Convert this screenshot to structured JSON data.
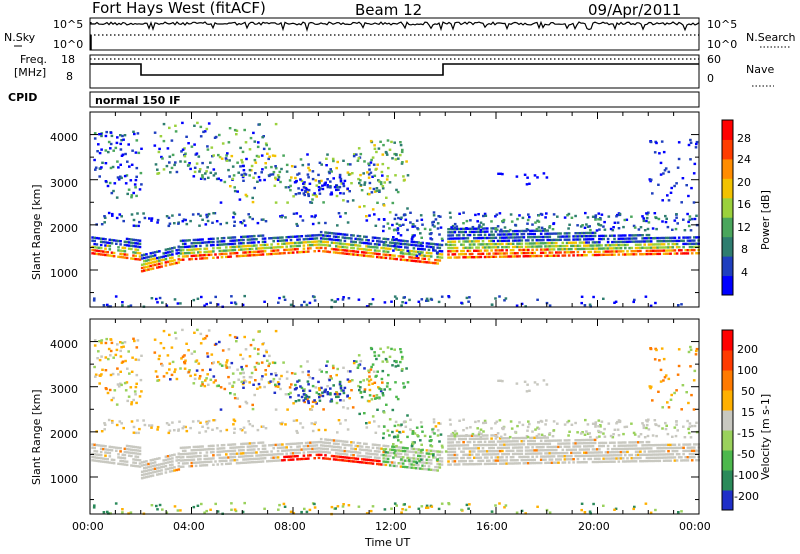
{
  "header": {
    "station": "Fort Hays West (fitACF)",
    "beam": "Beam 12",
    "date": "09/Apr/2011"
  },
  "noise_panel": {
    "left_label": "N.Sky",
    "left_ticks": [
      "10^5",
      "10^0"
    ],
    "right_label": "N.Search",
    "right_ticks": [
      "10^5",
      "10^0"
    ]
  },
  "freq_panel": {
    "left_label_1": "Freq.",
    "left_label_2": "[MHz]",
    "left_ticks": [
      "18",
      "8"
    ],
    "right_label": "Nave",
    "right_ticks": [
      "60",
      "0"
    ]
  },
  "cpid": {
    "label": "CPID",
    "mode": "normal 150 IF"
  },
  "chart_data": [
    {
      "type": "heatmap",
      "name": "power",
      "ylabel": "Slant Range [km]",
      "ylim": [
        180,
        4500
      ],
      "y_ticks": [
        "4000",
        "3000",
        "2000",
        "1000"
      ],
      "xlabel": "Time UT",
      "x_ticks": [
        "00:00",
        "04:00",
        "08:00",
        "12:00",
        "16:00",
        "20:00",
        "00:00"
      ],
      "colorbar": {
        "label": "Power [dB]",
        "ticks": [
          "28",
          "24",
          "20",
          "16",
          "12",
          "8",
          "4"
        ],
        "colors": [
          "#0000ff",
          "#1f3fbf",
          "#2e7d6f",
          "#4aa65c",
          "#9bd13c",
          "#f2c200",
          "#ff8c00",
          "#ff3d00",
          "#ff0000"
        ]
      },
      "bands": [
        {
          "t0": 0.0,
          "t1": 2.0,
          "r_low": [
            1400,
            1250
          ],
          "r_high": [
            1750,
            1700
          ]
        },
        {
          "t0": 2.0,
          "t1": 3.5,
          "r_low": [
            1000,
            1200
          ],
          "r_high": [
            1400,
            1550
          ]
        },
        {
          "t0": 3.5,
          "t1": 9.0,
          "r_low": [
            1250,
            1450
          ],
          "r_high": [
            1700,
            1850
          ]
        },
        {
          "t0": 9.0,
          "t1": 14.0,
          "r_low": [
            1450,
            1150
          ],
          "r_high": [
            1900,
            1600
          ]
        },
        {
          "t0": 14.0,
          "t1": 24.0,
          "r_low": [
            1300,
            1400
          ],
          "r_high": [
            2000,
            1750
          ]
        }
      ]
    },
    {
      "type": "heatmap",
      "name": "velocity",
      "ylabel": "Slant Range [km]",
      "ylim": [
        180,
        4500
      ],
      "y_ticks": [
        "4000",
        "3000",
        "2000",
        "1000"
      ],
      "xlabel": "Time UT",
      "x_ticks": [
        "00:00",
        "04:00",
        "08:00",
        "12:00",
        "16:00",
        "20:00",
        "00:00"
      ],
      "colorbar": {
        "label": "Velocity [m s-1]",
        "ticks": [
          "200",
          "100",
          "50",
          "15",
          "-15",
          "-50",
          "-100",
          "-200"
        ],
        "colors": [
          "#1f2fc8",
          "#2a8a5a",
          "#4db84d",
          "#9ad15c",
          "#c8c8c0",
          "#ffb000",
          "#ff7a00",
          "#ff3a00",
          "#ff0000"
        ]
      }
    }
  ]
}
